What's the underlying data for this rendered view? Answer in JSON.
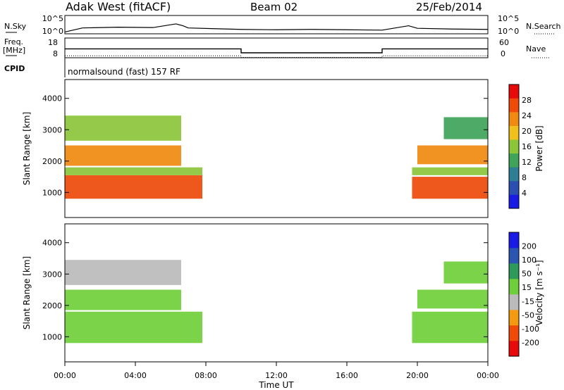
{
  "header": {
    "station": "Adak West (fitACF)",
    "beam": "Beam 02",
    "date": "25/Feb/2014"
  },
  "panel_labels": {
    "nsky": "N.Sky",
    "nsearch": "N.Search",
    "freq_line1": "Freq.",
    "freq_line2": "[MHz]",
    "nave": "Nave",
    "cpid": "CPID",
    "cpid_value": "normalsound (fast) 157 RF"
  },
  "colors": {
    "power_scale": [
      "#1a1ae6",
      "#2a4fb0",
      "#2e7f93",
      "#3fa45a",
      "#8cc43a",
      "#f0c11c",
      "#f08a10",
      "#ee4a0a",
      "#e60a0a"
    ],
    "velocity_scale": [
      "#e60a0a",
      "#ef4a0a",
      "#f39a10",
      "#bbbbbb",
      "#6fcf3a",
      "#2e9a5a",
      "#2a55b0",
      "#1a1ae6"
    ]
  },
  "chart_data": [
    {
      "type": "line",
      "panel": "noise",
      "y_ticks_left": [
        "10^5",
        "10^0"
      ],
      "y_ticks_right": [
        "10^5",
        "10^0"
      ],
      "left_label": "N.Sky",
      "right_label": "N.Search",
      "series": [
        {
          "x": [
            0,
            1,
            3,
            5,
            6.3,
            6.7,
            7,
            8.5,
            10,
            12,
            14,
            16,
            18,
            19.5,
            20,
            22,
            24
          ],
          "y": [
            0.5,
            1.6,
            1.8,
            1.7,
            2.7,
            2.2,
            1.6,
            1.4,
            1.2,
            1.1,
            1.2,
            1.1,
            1.0,
            2.2,
            1.5,
            1.3,
            1.2
          ]
        }
      ],
      "ylim": [
        0,
        5
      ]
    },
    {
      "type": "line",
      "panel": "frequency",
      "y_ticks_left": [
        "18",
        "8"
      ],
      "y_ticks_right": [
        "60",
        "0"
      ],
      "series": [
        {
          "name": "Freq.",
          "x": [
            0,
            10,
            10,
            18,
            18,
            24
          ],
          "y": [
            12.5,
            12.5,
            10.5,
            10.5,
            12.5,
            12.5
          ]
        },
        {
          "name": "Nave",
          "x": [
            0,
            10,
            10,
            18,
            18,
            24
          ],
          "y": [
            9.0,
            9.0,
            8.2,
            8.2,
            9.0,
            9.0
          ]
        }
      ],
      "ylim": [
        8,
        18
      ]
    },
    {
      "type": "heatmap",
      "panel": "power",
      "ylabel": "Slant Range [km]",
      "colorbar_label": "Power [dB]",
      "colorbar_ticks": [
        4,
        8,
        12,
        16,
        20,
        24,
        28
      ],
      "y_ticks": [
        1000,
        2000,
        3000,
        4000
      ],
      "xlim": [
        0,
        24
      ],
      "ylim": [
        200,
        4600
      ],
      "regions": [
        {
          "t0": 0.0,
          "t1": 7.8,
          "r0": 800,
          "r1": 1550,
          "value": 28
        },
        {
          "t0": 0.0,
          "t1": 7.8,
          "r0": 1550,
          "r1": 1800,
          "value": 14
        },
        {
          "t0": 0.0,
          "t1": 6.6,
          "r0": 1850,
          "r1": 2500,
          "value": 22
        },
        {
          "t0": 0.0,
          "t1": 6.6,
          "r0": 2650,
          "r1": 3450,
          "value": 16
        },
        {
          "t0": 19.7,
          "t1": 24.0,
          "r0": 800,
          "r1": 1500,
          "value": 28
        },
        {
          "t0": 19.7,
          "t1": 24.0,
          "r0": 1550,
          "r1": 1800,
          "value": 14
        },
        {
          "t0": 20.0,
          "t1": 24.0,
          "r0": 1900,
          "r1": 2500,
          "value": 22
        },
        {
          "t0": 21.5,
          "t1": 24.0,
          "r0": 2700,
          "r1": 3400,
          "value": 12
        }
      ]
    },
    {
      "type": "heatmap",
      "panel": "velocity",
      "ylabel": "Slant Range [km]",
      "colorbar_label": "Velocity [m s⁻¹]",
      "colorbar_ticks": [
        -200,
        -100,
        -50,
        -15,
        15,
        50,
        100,
        200
      ],
      "y_ticks": [
        1000,
        2000,
        3000,
        4000
      ],
      "xlim": [
        0,
        24
      ],
      "ylim": [
        200,
        4600
      ],
      "regions": [
        {
          "t0": 0.0,
          "t1": 7.8,
          "r0": 800,
          "r1": 1800,
          "value": 0
        },
        {
          "t0": 0.0,
          "t1": 6.6,
          "r0": 1850,
          "r1": 2500,
          "value": 0
        },
        {
          "t0": 0.0,
          "t1": 6.6,
          "r0": 2650,
          "r1": 3450,
          "value": -40
        },
        {
          "t0": 19.7,
          "t1": 24.0,
          "r0": 800,
          "r1": 1800,
          "value": 0
        },
        {
          "t0": 20.0,
          "t1": 24.0,
          "r0": 1900,
          "r1": 2500,
          "value": 0
        },
        {
          "t0": 21.5,
          "t1": 24.0,
          "r0": 2700,
          "r1": 3400,
          "value": 0
        }
      ]
    }
  ],
  "x_axis": {
    "label": "Time UT",
    "ticks": [
      "00:00",
      "04:00",
      "08:00",
      "12:00",
      "16:00",
      "20:00",
      "00:00"
    ],
    "tick_hours": [
      0,
      4,
      8,
      12,
      16,
      20,
      24
    ]
  }
}
